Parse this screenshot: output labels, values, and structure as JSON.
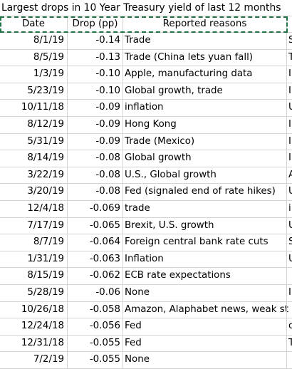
{
  "sheet": {
    "title": "Largest drops in 10 Year Treasury yield of last 12 months",
    "headers": {
      "date": "Date",
      "drop": "Drop (pp)",
      "reason": "Reported reasons"
    },
    "rows": [
      {
        "date": "8/1/19",
        "drop": "-0.14",
        "reason": "Trade",
        "next": "S"
      },
      {
        "date": "8/5/19",
        "drop": "-0.13",
        "reason": "Trade (China lets yuan fall)",
        "next": "T"
      },
      {
        "date": "1/3/19",
        "drop": "-0.10",
        "reason": "Apple, manufacturing data",
        "next": "I"
      },
      {
        "date": "5/23/19",
        "drop": "-0.10",
        "reason": "Global growth, trade",
        "next": "I"
      },
      {
        "date": "10/11/18",
        "drop": "-0.09",
        "reason": "inflation",
        "next": "U"
      },
      {
        "date": "8/12/19",
        "drop": "-0.09",
        "reason": "Hong Kong",
        "next": "I"
      },
      {
        "date": "5/31/19",
        "drop": "-0.09",
        "reason": "Trade (Mexico)",
        "next": "I"
      },
      {
        "date": "8/14/19",
        "drop": "-0.08",
        "reason": "Global growth",
        "next": "I"
      },
      {
        "date": "3/22/19",
        "drop": "-0.08",
        "reason": "U.S., Global growth",
        "next": "A"
      },
      {
        "date": "3/20/19",
        "drop": "-0.08",
        "reason": "Fed (signaled end of rate hikes)",
        "next": "U"
      },
      {
        "date": "12/4/18",
        "drop": "-0.069",
        "reason": "trade",
        "next": "i"
      },
      {
        "date": "7/17/19",
        "drop": "-0.065",
        "reason": "Brexit, U.S. growth",
        "next": "U"
      },
      {
        "date": "8/7/19",
        "drop": "-0.064",
        "reason": "Foreign central bank rate cuts",
        "next": "S"
      },
      {
        "date": "1/31/19",
        "drop": "-0.063",
        "reason": "Inflation",
        "next": "U"
      },
      {
        "date": "8/15/19",
        "drop": "-0.062",
        "reason": "ECB rate expectations",
        "next": ""
      },
      {
        "date": "5/28/19",
        "drop": "-0.06",
        "reason": "None",
        "next": "I"
      },
      {
        "date": "10/26/18",
        "drop": "-0.058",
        "reason": "Amazon, Alaphabet news, weak st",
        "next": ""
      },
      {
        "date": "12/24/18",
        "drop": "-0.056",
        "reason": "Fed",
        "next": "c"
      },
      {
        "date": "12/31/18",
        "drop": "-0.055",
        "reason": "Fed",
        "next": "T"
      },
      {
        "date": "7/2/19",
        "drop": "-0.055",
        "reason": "None",
        "next": ""
      }
    ]
  }
}
